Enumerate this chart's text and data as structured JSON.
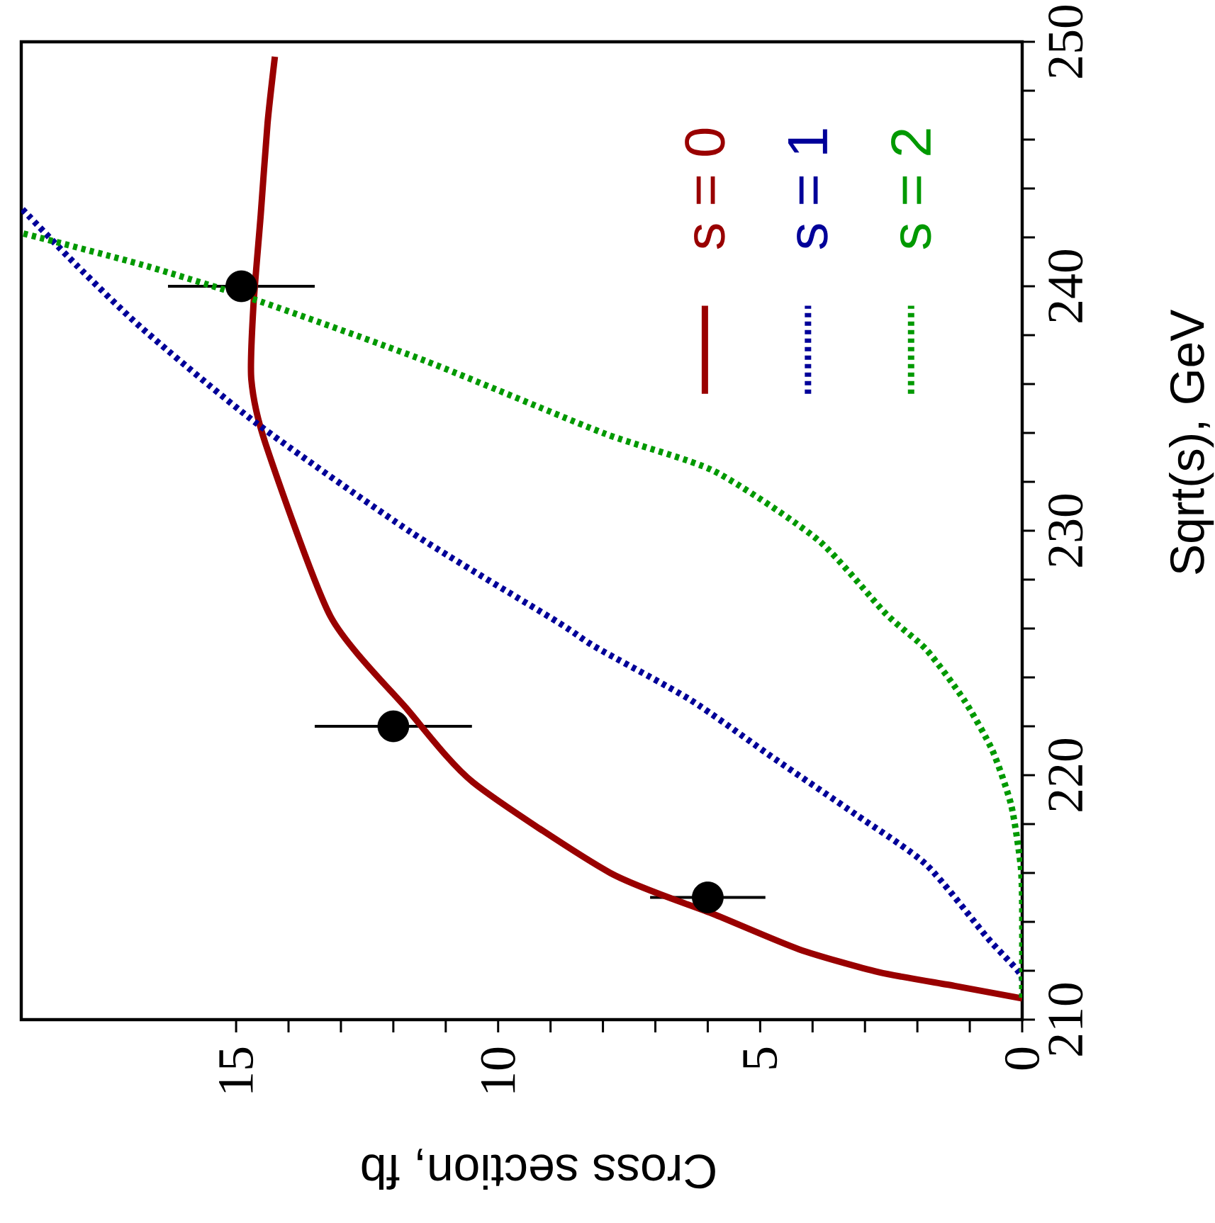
{
  "chart_data": {
    "type": "line",
    "xlabel": "Cross section, fb",
    "ylabel": "Sqrt(s), GeV",
    "xlim": [
      19.1,
      0
    ],
    "ylim": [
      210,
      250
    ],
    "xticks": [
      0,
      5,
      10,
      15
    ],
    "yticks": [
      210,
      220,
      230,
      240,
      250
    ],
    "legend": "top right",
    "grid": false,
    "series": [
      {
        "type": "scatter",
        "color": "#000000",
        "marker": "circle",
        "x": [
          6.0,
          12.0,
          14.9
        ],
        "values": [
          215,
          222,
          240
        ],
        "xerrors": [
          1.1,
          1.5,
          1.4
        ]
      },
      {
        "name": "s = 0",
        "color": "#990000",
        "line_style": "solid",
        "marker": "none",
        "x": [
          0,
          1.29,
          2.73,
          4.26,
          5.88,
          7.86,
          10.48,
          11.74,
          13.2,
          14.44,
          14.71,
          14.67,
          14.53,
          14.4,
          14.26
        ],
        "values": [
          210.87,
          211.38,
          211.94,
          212.88,
          214.31,
          216.0,
          219.71,
          222.71,
          226.5,
          233.57,
          236.19,
          239.19,
          242.93,
          246.67,
          249.39
        ]
      },
      {
        "name": "s = 1",
        "color": "#000099",
        "line_style": "dotted",
        "marker": "none",
        "x": [
          0,
          0.03,
          0.66,
          1.83,
          3.18,
          4.71,
          6.33,
          8.14,
          8.86,
          11.65,
          14.62,
          16.78,
          18.05,
          19.1
        ],
        "values": [
          210.9,
          211.84,
          213.34,
          216.34,
          218.4,
          220.65,
          223.08,
          225.24,
          226.26,
          229.92,
          234.41,
          238.25,
          240.87,
          243.2
        ]
      },
      {
        "name": "s = 2",
        "color": "#009900",
        "line_style": "dotted",
        "marker": "none",
        "x": [
          0,
          0,
          0.03,
          0.21,
          0.57,
          1.11,
          1.83,
          2.6,
          3.9,
          5.88,
          8.0,
          11.38,
          14.53,
          16.78,
          19.1
        ],
        "values": [
          210.9,
          214.65,
          216.34,
          218.78,
          221.02,
          223.08,
          225.14,
          226.6,
          229.63,
          232.44,
          234.0,
          236.94,
          239.37,
          240.87,
          242.18
        ]
      }
    ]
  }
}
